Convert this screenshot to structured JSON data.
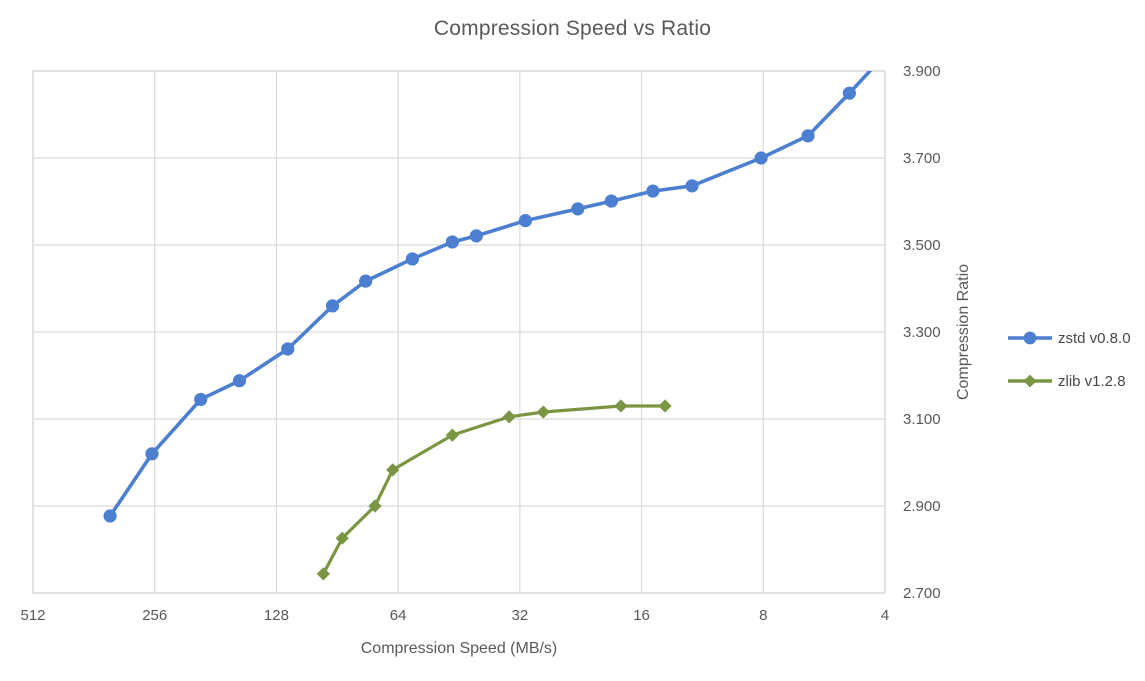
{
  "chart_data": {
    "type": "line",
    "title": "Compression Speed vs Ratio",
    "xlabel": "Compression Speed (MB/s)",
    "ylabel": "Compression Ratio",
    "x_scale": "log2-reversed",
    "xlim": [
      512,
      4
    ],
    "ylim": [
      2.7,
      3.9
    ],
    "grid": true,
    "legend_position": "right-middle",
    "x_ticks": [
      {
        "label": "512",
        "value": 512
      },
      {
        "label": "256",
        "value": 256
      },
      {
        "label": "128",
        "value": 128
      },
      {
        "label": "64",
        "value": 64
      },
      {
        "label": "32",
        "value": 32
      },
      {
        "label": "16",
        "value": 16
      },
      {
        "label": "8",
        "value": 8
      },
      {
        "label": "4",
        "value": 4
      }
    ],
    "y_ticks": [
      {
        "label": "3.900",
        "value": 3.9
      },
      {
        "label": "3.700",
        "value": 3.7
      },
      {
        "label": "3.500",
        "value": 3.5
      },
      {
        "label": "3.300",
        "value": 3.3
      },
      {
        "label": "3.100",
        "value": 3.1
      },
      {
        "label": "2.900",
        "value": 2.9
      },
      {
        "label": "2.700",
        "value": 2.7
      }
    ],
    "colors": {
      "gridline": "#D9D9D9",
      "plot_border": "#D9D9D9",
      "axis_text": "#595959",
      "title_text": "#595959"
    },
    "series": [
      {
        "name": "zstd v0.8.0",
        "color": "#4C7FD0",
        "marker": "circle",
        "points": [
          [
            330,
            2.877
          ],
          [
            260,
            3.02
          ],
          [
            197,
            3.145
          ],
          [
            158,
            3.188
          ],
          [
            120,
            3.261
          ],
          [
            93,
            3.36
          ],
          [
            77,
            3.417
          ],
          [
            59,
            3.468
          ],
          [
            47,
            3.507
          ],
          [
            41,
            3.521
          ],
          [
            31,
            3.556
          ],
          [
            23,
            3.583
          ],
          [
            19,
            3.601
          ],
          [
            15,
            3.624
          ],
          [
            12,
            3.636
          ],
          [
            8.1,
            3.7
          ],
          [
            6.2,
            3.751
          ],
          [
            4.9,
            3.849
          ],
          [
            3.8,
            3.96
          ]
        ]
      },
      {
        "name": "zlib v1.2.8",
        "color": "#7A9642",
        "marker": "diamond",
        "points": [
          [
            98,
            2.744
          ],
          [
            88,
            2.826
          ],
          [
            73,
            2.9
          ],
          [
            66,
            2.983
          ],
          [
            47,
            3.063
          ],
          [
            34,
            3.105
          ],
          [
            28,
            3.116
          ],
          [
            18,
            3.13
          ],
          [
            14,
            3.13
          ]
        ]
      }
    ]
  }
}
